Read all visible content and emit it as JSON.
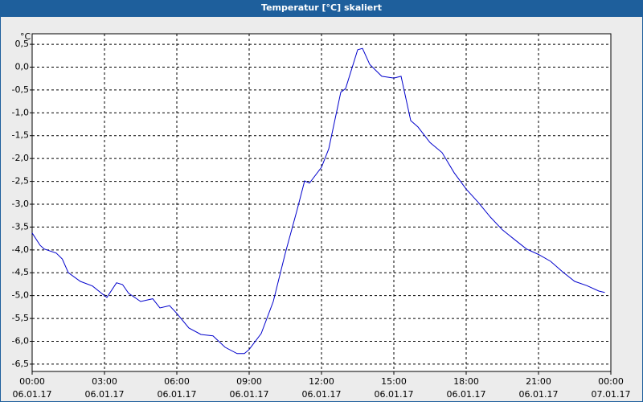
{
  "chart_data": {
    "type": "line",
    "title": "Temperatur [°C] skaliert",
    "y_unit": "°C",
    "x": [
      0,
      0.33,
      0.5,
      1,
      1.25,
      1.5,
      2,
      2.5,
      3,
      3.1,
      3.5,
      3.75,
      4,
      4.5,
      5,
      5.3,
      5.7,
      6,
      6.5,
      7,
      7.5,
      8,
      8.5,
      8.8,
      9,
      9.5,
      10,
      10.5,
      11,
      11.3,
      11.5,
      12,
      12.3,
      12.8,
      13,
      13.5,
      13.7,
      14,
      14.5,
      15,
      15.3,
      15.7,
      16,
      16.5,
      17,
      17.5,
      18,
      18.5,
      19,
      19.5,
      20,
      20.5,
      21,
      21.5,
      22,
      22.5,
      23,
      23.5,
      23.75
    ],
    "series": [
      {
        "name": "Temperatur",
        "color": "#0000cc",
        "values": [
          -3.63,
          -3.9,
          -3.98,
          -4.07,
          -4.2,
          -4.5,
          -4.69,
          -4.79,
          -5.0,
          -5.04,
          -4.72,
          -4.76,
          -4.95,
          -5.13,
          -5.07,
          -5.27,
          -5.22,
          -5.39,
          -5.71,
          -5.85,
          -5.88,
          -6.13,
          -6.27,
          -6.27,
          -6.18,
          -5.83,
          -5.13,
          -4.07,
          -3.1,
          -2.49,
          -2.54,
          -2.19,
          -1.79,
          -0.55,
          -0.47,
          0.38,
          0.41,
          0.06,
          -0.2,
          -0.24,
          -0.2,
          -1.17,
          -1.31,
          -1.65,
          -1.87,
          -2.31,
          -2.67,
          -2.96,
          -3.28,
          -3.56,
          -3.77,
          -3.98,
          -4.1,
          -4.25,
          -4.48,
          -4.69,
          -4.78,
          -4.9,
          -4.93
        ]
      }
    ],
    "xlim": [
      0,
      24
    ],
    "xticks": [
      {
        "value": 0,
        "label": [
          "00:00",
          "06.01.17"
        ]
      },
      {
        "value": 3,
        "label": [
          "03:00",
          "06.01.17"
        ]
      },
      {
        "value": 6,
        "label": [
          "06:00",
          "06.01.17"
        ]
      },
      {
        "value": 9,
        "label": [
          "09:00",
          "06.01.17"
        ]
      },
      {
        "value": 12,
        "label": [
          "12:00",
          "06.01.17"
        ]
      },
      {
        "value": 15,
        "label": [
          "15:00",
          "06.01.17"
        ]
      },
      {
        "value": 18,
        "label": [
          "18:00",
          "06.01.17"
        ]
      },
      {
        "value": 21,
        "label": [
          "21:00",
          "06.01.17"
        ]
      },
      {
        "value": 24,
        "label": [
          "00:00",
          "07.01.17"
        ]
      }
    ],
    "ylim": [
      -6.66,
      0.73
    ],
    "yticks": [
      {
        "value": 0.5,
        "label": "0,5"
      },
      {
        "value": 0,
        "label": "0,0"
      },
      {
        "value": -0.5,
        "label": "-0,5"
      },
      {
        "value": -1,
        "label": "-1,0"
      },
      {
        "value": -1.5,
        "label": "-1,5"
      },
      {
        "value": -2,
        "label": "-2,0"
      },
      {
        "value": -2.5,
        "label": "-2,5"
      },
      {
        "value": -3,
        "label": "-3,0"
      },
      {
        "value": -3.5,
        "label": "-3,5"
      },
      {
        "value": -4,
        "label": "-4,0"
      },
      {
        "value": -4.5,
        "label": "-4,5"
      },
      {
        "value": -5,
        "label": "-5,0"
      },
      {
        "value": -5.5,
        "label": "-5,5"
      },
      {
        "value": -6,
        "label": "-6,0"
      },
      {
        "value": -6.5,
        "label": "-6,5"
      }
    ],
    "grid": true
  }
}
